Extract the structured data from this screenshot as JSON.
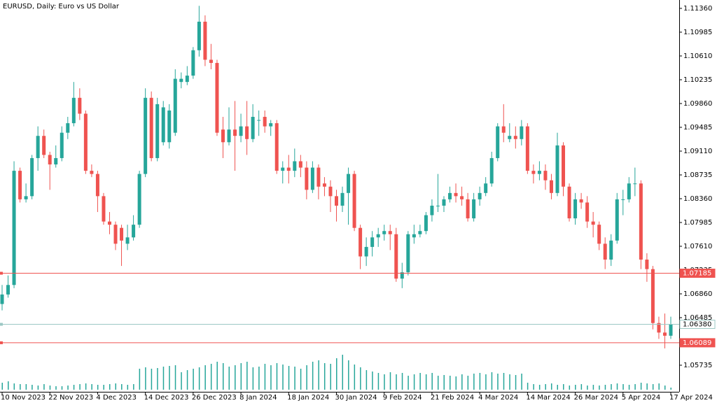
{
  "chart_data": {
    "type": "candlestick",
    "title": "EURUSD, Daily:  Euro vs US Dollar",
    "up_color": "#26a69a",
    "down_color": "#ef5350",
    "volume_color": "#26a69a",
    "ylim": [
      1.05316,
      1.11492
    ],
    "yticks": [
      {
        "value": 1.1136,
        "label": "1.11360"
      },
      {
        "value": 1.10985,
        "label": "1.10985"
      },
      {
        "value": 1.1061,
        "label": "1.10610"
      },
      {
        "value": 1.10235,
        "label": "1.10235"
      },
      {
        "value": 1.0986,
        "label": "1.09860"
      },
      {
        "value": 1.09485,
        "label": "1.09485"
      },
      {
        "value": 1.0911,
        "label": "1.09110"
      },
      {
        "value": 1.08735,
        "label": "1.08735"
      },
      {
        "value": 1.0836,
        "label": "1.08360"
      },
      {
        "value": 1.07985,
        "label": "1.07985"
      },
      {
        "value": 1.0761,
        "label": "1.07610"
      },
      {
        "value": 1.07235,
        "label": "1.07235"
      },
      {
        "value": 1.0686,
        "label": "1.06860"
      },
      {
        "value": 1.06485,
        "label": "1.06485"
      },
      {
        "value": 1.0611,
        "label": "1.06110"
      },
      {
        "value": 1.05735,
        "label": "1.05735"
      }
    ],
    "levels": [
      {
        "value": 1.07185,
        "label": "1.07185",
        "color": "#ef5350"
      },
      {
        "value": 1.0638,
        "label": "1.06380",
        "color": "#9cc8c4"
      },
      {
        "value": 1.06089,
        "label": "1.06089",
        "color": "#ef5350"
      }
    ],
    "categories": [
      "10 Nov 2023",
      null,
      null,
      null,
      null,
      null,
      null,
      null,
      "22 Nov 2023",
      null,
      null,
      null,
      null,
      null,
      null,
      null,
      "4 Dec 2023",
      null,
      null,
      null,
      null,
      null,
      null,
      null,
      "14 Dec 2023",
      null,
      null,
      null,
      null,
      null,
      null,
      null,
      "26 Dec 2023",
      null,
      null,
      null,
      null,
      null,
      null,
      null,
      "8 Jan 2024",
      null,
      null,
      null,
      null,
      null,
      null,
      null,
      "18 Jan 2024",
      null,
      null,
      null,
      null,
      null,
      null,
      null,
      "30 Jan 2024",
      null,
      null,
      null,
      null,
      null,
      null,
      null,
      "9 Feb 2024",
      null,
      null,
      null,
      null,
      null,
      null,
      null,
      "21 Feb 2024",
      null,
      null,
      null,
      null,
      null,
      null,
      null,
      "4 Mar 2024",
      null,
      null,
      null,
      null,
      null,
      null,
      null,
      "14 Mar 2024",
      null,
      null,
      null,
      null,
      null,
      null,
      null,
      "26 Mar 2024",
      null,
      null,
      null,
      null,
      null,
      null,
      null,
      "5 Apr 2024",
      null,
      null,
      null,
      null,
      null,
      null,
      null,
      "17 Apr 2024"
    ],
    "open": [
      1.067,
      1.0685,
      1.07,
      1.088,
      1.0835,
      1.084,
      1.09,
      1.0935,
      1.0905,
      1.089,
      1.09,
      1.094,
      1.0955,
      1.0995,
      1.097,
      1.088,
      1.0875,
      1.084,
      1.08,
      1.0795,
      1.079,
      1.0765,
      1.0775,
      1.0795,
      1.0875,
      1.0995,
      1.09,
      1.0925,
      1.0925,
      1.094,
      1.102,
      1.102,
      1.103,
      1.107,
      1.1115,
      1.1055,
      1.105,
      1.0945,
      1.0925,
      1.0945,
      1.0935,
      1.095,
      1.093,
      1.096,
      1.0965,
      1.095,
      1.0955,
      1.088,
      1.0885,
      1.088,
      1.0895,
      1.0885,
      1.085,
      1.0885,
      1.086,
      1.0855,
      1.084,
      1.0825,
      1.0845,
      1.0875,
      1.079,
      1.0745,
      1.076,
      1.0775,
      1.078,
      1.0785,
      1.078,
      1.071,
      1.072,
      1.0775,
      1.078,
      1.0785,
      1.081,
      1.0825,
      1.0825,
      1.0835,
      1.0845,
      1.084,
      1.0835,
      1.0805,
      1.0835,
      1.0845,
      1.086,
      1.09,
      1.095,
      1.093,
      1.0935,
      1.093,
      1.095,
      1.088,
      1.0875,
      1.088,
      1.0865,
      1.0845,
      1.092,
      1.0855,
      1.0805,
      1.0835,
      1.083,
      1.08,
      1.0795,
      1.0765,
      1.074,
      1.077,
      1.0835,
      1.0835,
      1.086,
      1.086,
      1.074,
      1.0725,
      1.064,
      1.0625,
      1.062
    ],
    "high": [
      1.07,
      1.0715,
      1.0895,
      1.0885,
      1.086,
      1.0905,
      1.095,
      1.0945,
      1.091,
      1.092,
      1.095,
      1.0965,
      1.102,
      1.101,
      1.0975,
      1.089,
      1.088,
      1.0845,
      1.0815,
      1.08,
      1.0795,
      1.0795,
      1.081,
      1.088,
      1.101,
      1.1005,
      1.0995,
      1.099,
      1.0985,
      1.104,
      1.1035,
      1.1045,
      1.1075,
      1.114,
      1.1125,
      1.108,
      1.1055,
      1.0965,
      1.098,
      1.099,
      1.097,
      1.099,
      1.0985,
      1.0975,
      1.0975,
      1.096,
      1.096,
      1.0895,
      1.0905,
      1.0915,
      1.0905,
      1.0895,
      1.0895,
      1.089,
      1.087,
      1.0865,
      1.085,
      1.0855,
      1.0885,
      1.088,
      1.0795,
      1.0775,
      1.0785,
      1.079,
      1.0795,
      1.0795,
      1.079,
      1.0735,
      1.0785,
      1.0795,
      1.0795,
      1.0815,
      1.0835,
      1.0875,
      1.084,
      1.0855,
      1.086,
      1.0855,
      1.0845,
      1.0845,
      1.0855,
      1.087,
      1.091,
      1.0955,
      1.0985,
      1.0955,
      1.095,
      1.096,
      1.0955,
      1.089,
      1.0895,
      1.089,
      1.0875,
      1.094,
      1.0925,
      1.086,
      1.0845,
      1.0845,
      1.084,
      1.0815,
      1.08,
      1.0775,
      1.078,
      1.0845,
      1.085,
      1.087,
      1.0885,
      1.0865,
      1.075,
      1.073,
      1.065,
      1.0655,
      1.065
    ],
    "low": [
      1.066,
      1.068,
      1.0695,
      1.083,
      1.083,
      1.0835,
      1.088,
      1.09,
      1.085,
      1.0885,
      1.0895,
      1.093,
      1.095,
      1.096,
      1.0875,
      1.087,
      1.0815,
      1.0795,
      1.078,
      1.0755,
      1.073,
      1.0755,
      1.077,
      1.079,
      1.087,
      1.0895,
      1.0895,
      1.092,
      1.0915,
      1.0935,
      1.101,
      1.1015,
      1.1025,
      1.106,
      1.1045,
      1.104,
      1.0935,
      1.09,
      1.092,
      1.088,
      1.0925,
      1.0905,
      1.0925,
      1.0935,
      1.094,
      1.0935,
      1.0875,
      1.086,
      1.086,
      1.087,
      1.087,
      1.0835,
      1.0845,
      1.0835,
      1.084,
      1.0815,
      1.08,
      1.0815,
      1.0795,
      1.0785,
      1.0725,
      1.073,
      1.0745,
      1.076,
      1.077,
      1.0755,
      1.0705,
      1.0695,
      1.0715,
      1.0765,
      1.0775,
      1.078,
      1.08,
      1.0815,
      1.0815,
      1.083,
      1.083,
      1.0825,
      1.08,
      1.08,
      1.0825,
      1.084,
      1.0855,
      1.0895,
      1.0925,
      1.0925,
      1.0915,
      1.092,
      1.0875,
      1.086,
      1.0865,
      1.085,
      1.0835,
      1.084,
      1.084,
      1.08,
      1.0795,
      1.082,
      1.079,
      1.0775,
      1.0755,
      1.0725,
      1.073,
      1.0765,
      1.081,
      1.083,
      1.084,
      1.0725,
      1.0705,
      1.063,
      1.0615,
      1.06,
      1.0615
    ],
    "close": [
      1.0685,
      1.07,
      1.088,
      1.0835,
      1.084,
      1.09,
      1.0935,
      1.0905,
      1.089,
      1.09,
      1.094,
      1.0955,
      1.0995,
      1.097,
      1.088,
      1.0875,
      1.084,
      1.08,
      1.0795,
      1.0765,
      1.077,
      1.0775,
      1.0795,
      1.0875,
      1.0995,
      1.09,
      1.0985,
      1.098,
      1.0975,
      1.1025,
      1.1025,
      1.103,
      1.107,
      1.1115,
      1.1055,
      1.105,
      1.094,
      1.0925,
      1.0945,
      1.0935,
      1.095,
      1.093,
      1.0965,
      1.096,
      1.095,
      1.0955,
      1.088,
      1.0885,
      1.088,
      1.0895,
      1.0885,
      1.085,
      1.0885,
      1.0855,
      1.0855,
      1.084,
      1.0825,
      1.0845,
      1.0875,
      1.079,
      1.0745,
      1.076,
      1.0775,
      1.078,
      1.0785,
      1.078,
      1.071,
      1.072,
      1.078,
      1.078,
      1.0785,
      1.081,
      1.0825,
      1.0825,
      1.0835,
      1.0845,
      1.084,
      1.0835,
      1.0805,
      1.0835,
      1.0845,
      1.086,
      1.09,
      1.095,
      1.094,
      1.0935,
      1.093,
      1.095,
      1.088,
      1.0875,
      1.088,
      1.0865,
      1.0845,
      1.092,
      1.0855,
      1.0805,
      1.0835,
      1.083,
      1.08,
      1.0795,
      1.0765,
      1.074,
      1.077,
      1.0835,
      1.0835,
      1.086,
      1.086,
      1.074,
      1.0725,
      1.064,
      1.0625,
      1.062,
      1.0638
    ],
    "volume": [
      10,
      12,
      9,
      8,
      8,
      7,
      6,
      8,
      6,
      5,
      5,
      6,
      7,
      8,
      9,
      8,
      7,
      7,
      8,
      9,
      8,
      7,
      8,
      30,
      32,
      30,
      31,
      33,
      34,
      35,
      25,
      28,
      30,
      32,
      35,
      37,
      40,
      38,
      33,
      35,
      38,
      40,
      32,
      33,
      37,
      35,
      38,
      36,
      34,
      33,
      30,
      35,
      40,
      42,
      38,
      37,
      45,
      50,
      42,
      36,
      32,
      28,
      26,
      24,
      22,
      25,
      22,
      24,
      20,
      22,
      24,
      22,
      24,
      20,
      21,
      20,
      19,
      22,
      20,
      23,
      24,
      22,
      25,
      23,
      24,
      22,
      21,
      23,
      10,
      8,
      7,
      8,
      9,
      7,
      8,
      6,
      7,
      8,
      6,
      7,
      6,
      7,
      8,
      9,
      8,
      7,
      8,
      10,
      9,
      8,
      9,
      6,
      3
    ]
  }
}
